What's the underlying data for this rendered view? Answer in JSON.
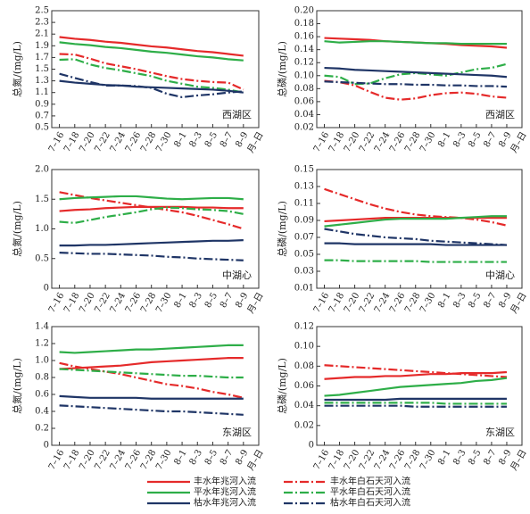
{
  "chart_data": [
    {
      "type": "line",
      "ylabel": "总氮/(mg/L)",
      "annotation": "西湖区",
      "xlabel": "月–日",
      "categories": [
        "7–16",
        "7–18",
        "7–20",
        "7–22",
        "7–24",
        "7–26",
        "7–28",
        "7–30",
        "8–1",
        "8–3",
        "8–5",
        "8–7",
        "8–9"
      ],
      "ylim": [
        0.5,
        2.5
      ],
      "yticks": [
        0.5,
        0.7,
        0.9,
        1.1,
        1.3,
        1.5,
        1.7,
        1.9,
        2.1,
        2.3,
        2.5
      ],
      "series": [
        {
          "values": [
            2.05,
            2.02,
            2.0,
            1.97,
            1.95,
            1.92,
            1.89,
            1.87,
            1.84,
            1.81,
            1.79,
            1.76,
            1.73
          ]
        },
        {
          "values": [
            1.76,
            1.75,
            1.68,
            1.6,
            1.55,
            1.5,
            1.44,
            1.38,
            1.33,
            1.3,
            1.28,
            1.27,
            1.15
          ]
        },
        {
          "values": [
            1.96,
            1.93,
            1.91,
            1.88,
            1.86,
            1.83,
            1.8,
            1.78,
            1.75,
            1.72,
            1.7,
            1.67,
            1.65
          ]
        },
        {
          "values": [
            1.66,
            1.67,
            1.58,
            1.52,
            1.48,
            1.43,
            1.38,
            1.3,
            1.25,
            1.2,
            1.18,
            1.15,
            1.1
          ]
        },
        {
          "values": [
            1.3,
            1.27,
            1.25,
            1.23,
            1.22,
            1.2,
            1.19,
            1.18,
            1.17,
            1.16,
            1.15,
            1.13,
            1.1
          ]
        },
        {
          "values": [
            1.42,
            1.35,
            1.28,
            1.22,
            1.22,
            1.21,
            1.18,
            1.08,
            1.02,
            1.05,
            1.07,
            1.1,
            1.12
          ]
        }
      ]
    },
    {
      "type": "line",
      "ylabel": "总磷/(mg/L)",
      "annotation": "西湖区",
      "xlabel": "月–日",
      "categories": [
        "7–16",
        "7–18",
        "7–20",
        "7–22",
        "7–24",
        "7–26",
        "7–28",
        "7–30",
        "8–1",
        "8–3",
        "8–5",
        "8–7",
        "8–9"
      ],
      "ylim": [
        0.02,
        0.2
      ],
      "yticks": [
        0.02,
        0.04,
        0.06,
        0.08,
        {
          "value": 0.1,
          "label": "0.10"
        },
        0.12,
        0.14,
        0.16,
        0.18,
        {
          "value": 0.2,
          "label": "0.20"
        }
      ],
      "series": [
        {
          "values": [
            0.158,
            0.157,
            0.156,
            0.155,
            0.153,
            0.152,
            0.151,
            0.15,
            0.149,
            0.147,
            0.146,
            0.145,
            0.143
          ]
        },
        {
          "values": [
            0.092,
            0.09,
            0.085,
            0.075,
            0.066,
            0.063,
            0.065,
            0.07,
            0.073,
            0.074,
            0.072,
            0.068,
            0.066
          ]
        },
        {
          "values": [
            0.153,
            0.151,
            0.152,
            0.153,
            0.153,
            0.152,
            0.151,
            0.15,
            0.15,
            0.149,
            0.149,
            0.149,
            0.149
          ]
        },
        {
          "values": [
            0.1,
            0.098,
            0.087,
            0.088,
            0.096,
            0.102,
            0.104,
            0.102,
            0.1,
            0.105,
            0.11,
            0.112,
            0.118
          ]
        },
        {
          "values": [
            0.112,
            0.111,
            0.109,
            0.108,
            0.107,
            0.106,
            0.105,
            0.104,
            0.103,
            0.102,
            0.101,
            0.1,
            0.098
          ]
        },
        {
          "values": [
            0.091,
            0.09,
            0.089,
            0.088,
            0.087,
            0.087,
            0.086,
            0.086,
            0.085,
            0.085,
            0.084,
            0.084,
            0.083
          ]
        }
      ]
    },
    {
      "type": "line",
      "ylabel": "总氮/(mg/L)",
      "annotation": "中湖心",
      "xlabel": "月–日",
      "categories": [
        "7–16",
        "7–18",
        "7–20",
        "7–22",
        "7–24",
        "7–26",
        "7–28",
        "7–30",
        "8–1",
        "8–3",
        "8–5",
        "8–7",
        "8–9"
      ],
      "ylim": [
        0,
        2.0
      ],
      "yticks": [
        0,
        0.5,
        {
          "value": 1.0,
          "label": "1.0"
        },
        1.5,
        {
          "value": 2.0,
          "label": "2.0"
        }
      ],
      "series": [
        {
          "values": [
            1.3,
            1.32,
            1.33,
            1.35,
            1.36,
            1.37,
            1.37,
            1.37,
            1.37,
            1.36,
            1.36,
            1.35,
            1.35
          ]
        },
        {
          "values": [
            1.62,
            1.57,
            1.52,
            1.48,
            1.44,
            1.4,
            1.36,
            1.32,
            1.28,
            1.22,
            1.15,
            1.08,
            1.0
          ]
        },
        {
          "values": [
            1.5,
            1.52,
            1.53,
            1.54,
            1.55,
            1.55,
            1.53,
            1.51,
            1.5,
            1.51,
            1.52,
            1.52,
            1.5
          ]
        },
        {
          "values": [
            1.12,
            1.1,
            1.15,
            1.2,
            1.24,
            1.28,
            1.33,
            1.36,
            1.35,
            1.33,
            1.32,
            1.3,
            1.25
          ]
        },
        {
          "values": [
            0.72,
            0.72,
            0.73,
            0.73,
            0.74,
            0.75,
            0.76,
            0.77,
            0.78,
            0.79,
            0.8,
            0.8,
            0.81
          ]
        },
        {
          "values": [
            0.6,
            0.59,
            0.58,
            0.58,
            0.57,
            0.56,
            0.55,
            0.53,
            0.52,
            0.5,
            0.49,
            0.48,
            0.47
          ]
        }
      ]
    },
    {
      "type": "line",
      "ylabel": "总磷/(mg/L)",
      "annotation": "中湖心",
      "xlabel": "月–日",
      "categories": [
        "7–16",
        "7–18",
        "7–20",
        "7–22",
        "7–24",
        "7–26",
        "7–28",
        "7–30",
        "8–1",
        "8–3",
        "8–5",
        "8–7",
        "8–9"
      ],
      "ylim": [
        0.01,
        0.15
      ],
      "yticks": [
        0.01,
        0.03,
        0.05,
        0.07,
        0.09,
        0.11,
        0.13,
        0.15
      ],
      "series": [
        {
          "values": [
            0.089,
            0.09,
            0.091,
            0.092,
            0.093,
            0.093,
            0.093,
            0.093,
            0.093,
            0.093,
            0.093,
            0.093,
            0.093
          ]
        },
        {
          "values": [
            0.127,
            0.121,
            0.115,
            0.109,
            0.104,
            0.1,
            0.097,
            0.095,
            0.094,
            0.093,
            0.091,
            0.088,
            0.084
          ]
        },
        {
          "values": [
            0.083,
            0.085,
            0.087,
            0.089,
            0.091,
            0.092,
            0.092,
            0.092,
            0.092,
            0.093,
            0.094,
            0.095,
            0.095
          ]
        },
        {
          "values": [
            0.043,
            0.043,
            0.042,
            0.042,
            0.042,
            0.042,
            0.042,
            0.041,
            0.041,
            0.041,
            0.041,
            0.041,
            0.041
          ]
        },
        {
          "values": [
            0.063,
            0.063,
            0.062,
            0.062,
            0.062,
            0.062,
            0.062,
            0.062,
            0.061,
            0.061,
            0.061,
            0.061,
            0.061
          ]
        },
        {
          "values": [
            0.08,
            0.077,
            0.074,
            0.072,
            0.07,
            0.069,
            0.068,
            0.066,
            0.065,
            0.064,
            0.063,
            0.062,
            0.061
          ]
        }
      ]
    },
    {
      "type": "line",
      "ylabel": "总氮/(mg/L)",
      "annotation": "东湖区",
      "xlabel": "月–日",
      "categories": [
        "7–16",
        "7–18",
        "7–20",
        "7–22",
        "7–24",
        "7–26",
        "7–28",
        "7–30",
        "8–1",
        "8–3",
        "8–5",
        "8–7",
        "8–9"
      ],
      "ylim": [
        0,
        1.4
      ],
      "yticks": [
        0,
        0.2,
        0.4,
        0.6,
        0.8,
        {
          "value": 1.0,
          "label": "1.0"
        },
        1.2,
        1.4
      ],
      "series": [
        {
          "values": [
            0.9,
            0.91,
            0.92,
            0.93,
            0.94,
            0.96,
            0.98,
            0.99,
            1.0,
            1.01,
            1.02,
            1.03,
            1.03
          ]
        },
        {
          "values": [
            0.97,
            0.93,
            0.9,
            0.87,
            0.84,
            0.8,
            0.76,
            0.72,
            0.7,
            0.67,
            0.63,
            0.6,
            0.56
          ]
        },
        {
          "values": [
            1.1,
            1.09,
            1.1,
            1.11,
            1.12,
            1.13,
            1.13,
            1.14,
            1.15,
            1.16,
            1.17,
            1.18,
            1.18
          ]
        },
        {
          "values": [
            0.9,
            0.89,
            0.88,
            0.87,
            0.86,
            0.85,
            0.84,
            0.83,
            0.82,
            0.82,
            0.81,
            0.8,
            0.8
          ]
        },
        {
          "values": [
            0.58,
            0.57,
            0.56,
            0.56,
            0.56,
            0.56,
            0.55,
            0.55,
            0.55,
            0.55,
            0.55,
            0.55,
            0.55
          ]
        },
        {
          "values": [
            0.47,
            0.46,
            0.45,
            0.44,
            0.43,
            0.42,
            0.41,
            0.4,
            0.4,
            0.39,
            0.38,
            0.37,
            0.36
          ]
        }
      ]
    },
    {
      "type": "line",
      "ylabel": "总磷/(mg/L)",
      "annotation": "东湖区",
      "xlabel": "月–日",
      "categories": [
        "7–16",
        "7–18",
        "7–20",
        "7–22",
        "7–24",
        "7–26",
        "7–28",
        "7–30",
        "8–1",
        "8–3",
        "8–5",
        "8–7",
        "8–9"
      ],
      "ylim": [
        0,
        0.12
      ],
      "yticks": [
        0,
        0.02,
        0.04,
        0.06,
        0.08,
        {
          "value": 0.1,
          "label": "0.10"
        },
        0.12
      ],
      "series": [
        {
          "values": [
            0.067,
            0.068,
            0.069,
            0.069,
            0.07,
            0.07,
            0.071,
            0.072,
            0.072,
            0.073,
            0.073,
            0.073,
            0.074
          ]
        },
        {
          "values": [
            0.081,
            0.08,
            0.079,
            0.078,
            0.077,
            0.076,
            0.075,
            0.074,
            0.073,
            0.072,
            0.071,
            0.07,
            0.069
          ]
        },
        {
          "values": [
            0.05,
            0.051,
            0.053,
            0.055,
            0.057,
            0.059,
            0.06,
            0.061,
            0.062,
            0.063,
            0.065,
            0.066,
            0.068
          ]
        },
        {
          "values": [
            0.043,
            0.043,
            0.043,
            0.043,
            0.043,
            0.043,
            0.043,
            0.043,
            0.042,
            0.042,
            0.042,
            0.042,
            0.042
          ]
        },
        {
          "values": [
            0.046,
            0.046,
            0.046,
            0.046,
            0.046,
            0.047,
            0.047,
            0.047,
            0.047,
            0.047,
            0.047,
            0.047,
            0.047
          ]
        },
        {
          "values": [
            0.04,
            0.04,
            0.04,
            0.04,
            0.04,
            0.04,
            0.039,
            0.039,
            0.039,
            0.039,
            0.039,
            0.039,
            0.039
          ]
        }
      ]
    }
  ],
  "legend": [
    {
      "name": "丰水年兆河入流",
      "color": "#e52a2a",
      "dash": false
    },
    {
      "name": "丰水年白石天河入流",
      "color": "#e52a2a",
      "dash": true
    },
    {
      "name": "平水年兆河入流",
      "color": "#2eae48",
      "dash": false
    },
    {
      "name": "平水年白石天河入流",
      "color": "#2eae48",
      "dash": true
    },
    {
      "name": "枯水年兆河入流",
      "color": "#1f3566",
      "dash": false
    },
    {
      "name": "枯水年白石天河入流",
      "color": "#1f3566",
      "dash": true
    }
  ]
}
